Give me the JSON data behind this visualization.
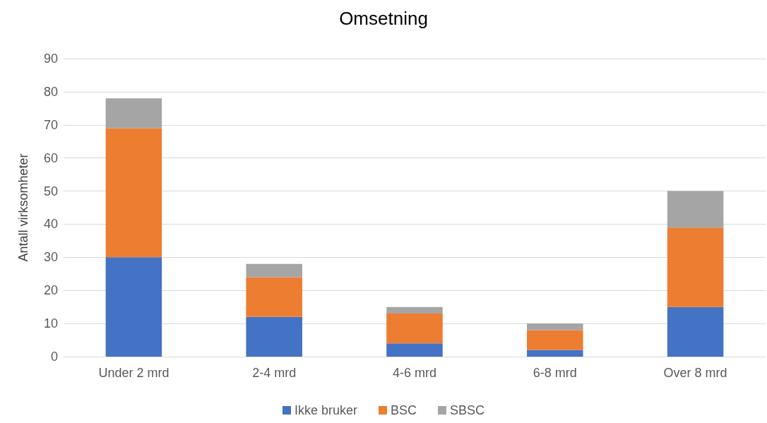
{
  "chart_data": {
    "type": "bar",
    "title": "Omsetning",
    "ylabel": "Antall virksomheter",
    "stacked": true,
    "categories": [
      "Under 2 mrd",
      "2-4 mrd",
      "4-6 mrd",
      "6-8 mrd",
      "Over 8 mrd"
    ],
    "series": [
      {
        "name": "Ikke bruker",
        "color": "#4472c4",
        "values": [
          30,
          12,
          4,
          2,
          15
        ]
      },
      {
        "name": "BSC",
        "color": "#ed7d31",
        "values": [
          39,
          12,
          9,
          6,
          24
        ]
      },
      {
        "name": "SBSC",
        "color": "#a5a5a5",
        "values": [
          9,
          4,
          2,
          2,
          11
        ]
      }
    ],
    "ylim": [
      0,
      90
    ],
    "yticks": [
      0,
      10,
      20,
      30,
      40,
      50,
      60,
      70,
      80,
      90
    ],
    "grid": "y",
    "legend": "bottom"
  }
}
